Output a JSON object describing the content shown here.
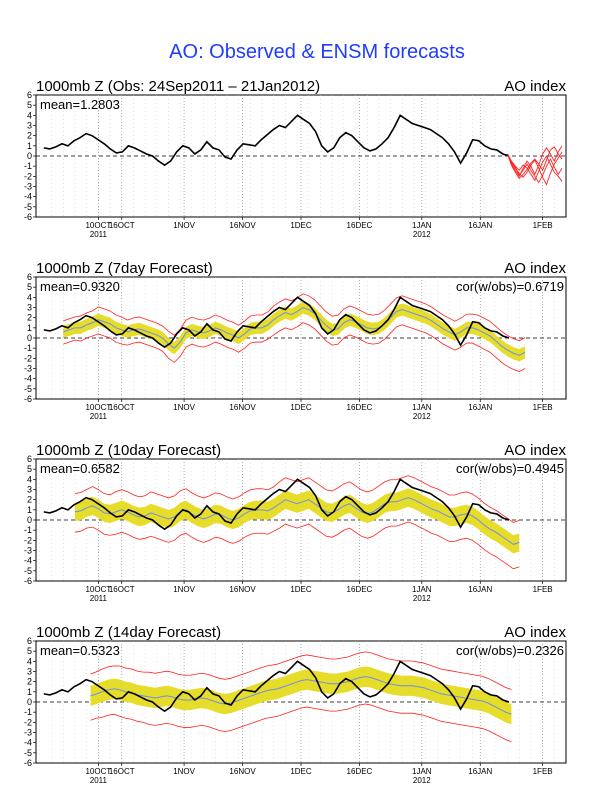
{
  "main_title": "AO: Observed & ENSM forecasts",
  "colors": {
    "title": "#1f3cff",
    "observed": "#000000",
    "member": "#ff2020",
    "band": "#e6dc2a",
    "ens_mean": "#6f8fe8",
    "grid": "#8c8c8c"
  },
  "x_ticks": [
    {
      "label": "10OCT",
      "year": "2011"
    },
    {
      "label": "16OCT",
      "year": ""
    },
    {
      "label": "1NOV",
      "year": ""
    },
    {
      "label": "16NOV",
      "year": ""
    },
    {
      "label": "1DEC",
      "year": ""
    },
    {
      "label": "16DEC",
      "year": ""
    },
    {
      "label": "1JAN",
      "year": "2012"
    },
    {
      "label": "16JAN",
      "year": ""
    },
    {
      "label": "1FEB",
      "year": ""
    }
  ],
  "y_ticks": [
    "6",
    "5",
    "4",
    "3",
    "2",
    "1",
    "0",
    "-1",
    "-2",
    "-3",
    "-4",
    "-5",
    "-6"
  ],
  "chart_data": [
    {
      "type": "line",
      "title": "1000mb Z (Obs: 24Sep2011 – 21Jan2012)",
      "right_title": "AO index",
      "mean_text": "mean=1.2803",
      "cor_text": "",
      "ylim": [
        -6,
        6
      ],
      "xlim_days": [
        0,
        136
      ],
      "observed": [
        0.8,
        0.7,
        0.9,
        1.2,
        1.0,
        1.5,
        1.8,
        2.2,
        2.0,
        1.6,
        1.2,
        0.7,
        0.3,
        0.4,
        1.0,
        0.8,
        0.5,
        0.2,
        0.0,
        -0.5,
        -0.9,
        -0.5,
        0.4,
        1.0,
        0.8,
        0.2,
        0.6,
        1.4,
        0.8,
        0.6,
        -0.1,
        -0.3,
        0.6,
        1.2,
        1.1,
        1.0,
        1.6,
        2.1,
        2.6,
        3.0,
        2.8,
        3.4,
        4.0,
        3.6,
        3.2,
        2.4,
        1.0,
        0.4,
        0.8,
        1.8,
        2.3,
        2.0,
        1.4,
        0.8,
        0.5,
        0.7,
        1.2,
        1.8,
        2.8,
        4.0,
        3.6,
        3.2,
        3.0,
        2.8,
        2.6,
        2.2,
        1.8,
        1.2,
        0.4,
        -0.7,
        0.3,
        1.6,
        1.5,
        1.0,
        0.7,
        0.6,
        0.2,
        0.0
      ],
      "members": [
        [
          0.2,
          -0.8,
          -1.4,
          -2.0,
          -1.2,
          -0.5,
          -1.0,
          -1.8,
          -0.9,
          0.2,
          0.8,
          0.2,
          -0.5,
          0.4,
          1.0
        ],
        [
          0.2,
          -0.5,
          -1.0,
          -1.4,
          -0.9,
          -1.2,
          -1.8,
          -2.4,
          -1.5,
          -0.6,
          0.0,
          -0.8,
          -1.6,
          -2.0,
          -2.5
        ],
        [
          0.2,
          -0.9,
          -1.6,
          -2.2,
          -1.8,
          -1.3,
          -0.7,
          -0.3,
          -0.8,
          -1.4,
          -0.4,
          0.6,
          0.9,
          0.2,
          -0.3
        ],
        [
          0.2,
          -0.6,
          -1.2,
          -1.7,
          -2.1,
          -1.6,
          -0.9,
          -0.4,
          -1.2,
          -2.1,
          -2.8,
          -1.7,
          -0.8,
          -0.2,
          0.4
        ],
        [
          0.2,
          -0.7,
          -1.1,
          -1.9,
          -1.4,
          -0.8,
          -1.4,
          -2.0,
          -2.6,
          -1.9,
          -1.0,
          -0.3,
          -1.1,
          -1.8,
          -1.2
        ]
      ],
      "members_start_day": 121
    },
    {
      "type": "line",
      "title": "1000mb Z (7day Forecast)",
      "right_title": "AO index",
      "mean_text": "mean=0.9320",
      "cor_text": "cor(w/obs)=0.6719",
      "ylim": [
        -6,
        6
      ],
      "xlim_days": [
        0,
        136
      ],
      "observed": [
        0.8,
        0.7,
        0.9,
        1.2,
        1.0,
        1.5,
        1.8,
        2.2,
        2.0,
        1.6,
        1.2,
        0.7,
        0.3,
        0.4,
        1.0,
        0.8,
        0.5,
        0.2,
        0.0,
        -0.5,
        -0.9,
        -0.5,
        0.4,
        1.0,
        0.8,
        0.2,
        0.6,
        1.4,
        0.8,
        0.6,
        -0.1,
        -0.3,
        0.6,
        1.2,
        1.1,
        1.0,
        1.6,
        2.1,
        2.6,
        3.0,
        2.8,
        3.4,
        4.0,
        3.6,
        3.2,
        2.4,
        1.0,
        0.4,
        0.8,
        1.8,
        2.3,
        2.0,
        1.4,
        0.8,
        0.5,
        0.7,
        1.2,
        1.8,
        2.8,
        4.0,
        3.6,
        3.2,
        3.0,
        2.8,
        2.6,
        2.2,
        1.8,
        1.2,
        0.4,
        -0.7,
        0.3,
        1.6,
        1.5,
        1.0,
        0.7,
        0.6,
        0.2,
        0.0
      ],
      "forecast_mean": [
        0.6,
        0.8,
        1.0,
        1.0,
        1.3,
        1.5,
        1.8,
        1.6,
        1.4,
        1.0,
        0.8,
        0.6,
        0.8,
        0.9,
        0.7,
        0.5,
        0.3,
        0.0,
        -0.6,
        -1.0,
        -0.4,
        0.5,
        0.8,
        0.6,
        0.5,
        0.7,
        1.0,
        0.8,
        0.5,
        0.3,
        0.0,
        0.4,
        0.9,
        1.0,
        1.0,
        1.3,
        1.8,
        2.2,
        2.5,
        2.3,
        2.6,
        3.0,
        2.8,
        2.4,
        1.8,
        1.2,
        0.8,
        0.9,
        1.5,
        1.8,
        1.6,
        1.3,
        1.0,
        0.9,
        1.0,
        1.4,
        2.0,
        2.6,
        2.8,
        2.6,
        2.4,
        2.2,
        2.0,
        1.7,
        1.3,
        0.9,
        0.6,
        0.3,
        0.6,
        1.0,
        1.0,
        0.8,
        0.5,
        0.2,
        -0.3,
        -0.8,
        -1.2,
        -1.5,
        -1.7,
        -1.4
      ],
      "spread": [
        1.2,
        1.2,
        1.2,
        1.3,
        1.3,
        1.3,
        1.4,
        1.4,
        1.4,
        1.4,
        1.4,
        1.3,
        1.3,
        1.3,
        1.3,
        1.3,
        1.3,
        1.3,
        1.4,
        1.4,
        1.4,
        1.4,
        1.4,
        1.4,
        1.4,
        1.4,
        1.4,
        1.4,
        1.4,
        1.4,
        1.4,
        1.4,
        1.4,
        1.4,
        1.4,
        1.4,
        1.5,
        1.5,
        1.5,
        1.5,
        1.5,
        1.5,
        1.5,
        1.5,
        1.5,
        1.5,
        1.5,
        1.5,
        1.5,
        1.5,
        1.5,
        1.5,
        1.5,
        1.5,
        1.5,
        1.5,
        1.5,
        1.5,
        1.5,
        1.5,
        1.5,
        1.5,
        1.5,
        1.5,
        1.5,
        1.5,
        1.5,
        1.5,
        1.5,
        1.5,
        1.5,
        1.6,
        1.6,
        1.6,
        1.6,
        1.6,
        1.6,
        1.6,
        1.6,
        1.6
      ],
      "band_half": 0.6,
      "forecast_start_day": 7
    },
    {
      "type": "line",
      "title": "1000mb Z (10day Forecast)",
      "right_title": "AO index",
      "mean_text": "mean=0.6582",
      "cor_text": "cor(w/obs)=0.4945",
      "ylim": [
        -6,
        6
      ],
      "xlim_days": [
        0,
        136
      ],
      "observed": [
        0.8,
        0.7,
        0.9,
        1.2,
        1.0,
        1.5,
        1.8,
        2.2,
        2.0,
        1.6,
        1.2,
        0.7,
        0.3,
        0.4,
        1.0,
        0.8,
        0.5,
        0.2,
        0.0,
        -0.5,
        -0.9,
        -0.5,
        0.4,
        1.0,
        0.8,
        0.2,
        0.6,
        1.4,
        0.8,
        0.6,
        -0.1,
        -0.3,
        0.6,
        1.2,
        1.1,
        1.0,
        1.6,
        2.1,
        2.6,
        3.0,
        2.8,
        3.4,
        4.0,
        3.6,
        3.2,
        2.4,
        1.0,
        0.4,
        0.8,
        1.8,
        2.3,
        2.0,
        1.4,
        0.8,
        0.5,
        0.7,
        1.2,
        1.8,
        2.8,
        4.0,
        3.6,
        3.2,
        3.0,
        2.8,
        2.6,
        2.2,
        1.8,
        1.2,
        0.4,
        -0.7,
        0.3,
        1.6,
        1.5,
        1.0,
        0.7,
        0.6,
        0.2,
        0.0
      ],
      "forecast_mean": [
        0.8,
        0.9,
        1.2,
        1.4,
        1.1,
        0.7,
        0.6,
        0.8,
        1.0,
        0.8,
        0.5,
        0.3,
        0.4,
        0.7,
        0.5,
        0.3,
        0.1,
        0.3,
        0.8,
        1.0,
        0.6,
        0.3,
        0.1,
        0.3,
        0.6,
        0.5,
        0.2,
        0.0,
        0.2,
        0.6,
        0.9,
        1.0,
        1.0,
        0.9,
        1.2,
        1.6,
        2.0,
        1.8,
        1.6,
        1.8,
        2.0,
        1.6,
        1.2,
        0.8,
        0.7,
        1.0,
        1.4,
        1.6,
        1.2,
        0.8,
        0.6,
        0.8,
        1.2,
        1.6,
        1.8,
        1.8,
        2.0,
        2.2,
        2.0,
        1.7,
        1.4,
        1.1,
        0.9,
        0.6,
        0.3,
        0.3,
        0.5,
        0.6,
        0.4,
        0.0,
        -0.5,
        -0.9,
        -1.2,
        -1.6,
        -2.0,
        -2.4,
        -2.2
      ],
      "spread": [
        2.0,
        2.0,
        2.0,
        2.1,
        2.1,
        2.1,
        2.1,
        2.2,
        2.2,
        2.2,
        2.2,
        2.2,
        2.2,
        2.3,
        2.3,
        2.3,
        2.3,
        2.3,
        2.3,
        2.3,
        2.3,
        2.3,
        2.3,
        2.3,
        2.3,
        2.3,
        2.3,
        2.3,
        2.3,
        2.3,
        2.3,
        2.3,
        2.3,
        2.3,
        2.3,
        2.4,
        2.4,
        2.4,
        2.4,
        2.4,
        2.4,
        2.4,
        2.4,
        2.4,
        2.4,
        2.4,
        2.4,
        2.4,
        2.4,
        2.4,
        2.4,
        2.4,
        2.4,
        2.4,
        2.4,
        2.4,
        2.4,
        2.4,
        2.4,
        2.4,
        2.4,
        2.4,
        2.4,
        2.4,
        2.4,
        2.4,
        2.4,
        2.4,
        2.4,
        2.4,
        2.4,
        2.4,
        2.4,
        2.4,
        2.4,
        2.4,
        2.4,
        2.4
      ],
      "band_half": 0.9,
      "forecast_start_day": 10
    },
    {
      "type": "line",
      "title": "1000mb Z (14day Forecast)",
      "right_title": "AO index",
      "mean_text": "mean=0.5323",
      "cor_text": "cor(w/obs)=0.2326",
      "ylim": [
        -6,
        6
      ],
      "xlim_days": [
        0,
        136
      ],
      "observed": [
        0.8,
        0.7,
        0.9,
        1.2,
        1.0,
        1.5,
        1.8,
        2.2,
        2.0,
        1.6,
        1.2,
        0.7,
        0.3,
        0.4,
        1.0,
        0.8,
        0.5,
        0.2,
        0.0,
        -0.5,
        -0.9,
        -0.5,
        0.4,
        1.0,
        0.8,
        0.2,
        0.6,
        1.4,
        0.8,
        0.6,
        -0.1,
        -0.3,
        0.6,
        1.2,
        1.1,
        1.0,
        1.6,
        2.1,
        2.6,
        3.0,
        2.8,
        3.4,
        4.0,
        3.6,
        3.2,
        2.4,
        1.0,
        0.4,
        0.8,
        1.8,
        2.3,
        2.0,
        1.4,
        0.8,
        0.5,
        0.7,
        1.2,
        1.8,
        2.8,
        4.0,
        3.6,
        3.2,
        3.0,
        2.8,
        2.6,
        2.2,
        1.8,
        1.2,
        0.4,
        -0.7,
        0.3,
        1.6,
        1.5,
        1.0,
        0.7,
        0.6,
        0.2,
        0.0
      ],
      "forecast_mean": [
        0.6,
        0.8,
        1.0,
        1.2,
        1.3,
        1.2,
        1.0,
        0.9,
        0.7,
        0.6,
        0.5,
        0.4,
        0.5,
        0.6,
        0.5,
        0.3,
        0.2,
        0.2,
        0.3,
        0.4,
        0.3,
        0.1,
        -0.1,
        -0.2,
        -0.1,
        0.1,
        0.3,
        0.5,
        0.7,
        0.9,
        1.1,
        1.2,
        1.3,
        1.5,
        1.7,
        1.9,
        2.1,
        2.2,
        2.1,
        2.0,
        1.9,
        1.8,
        1.8,
        1.9,
        2.0,
        2.2,
        2.4,
        2.5,
        2.4,
        2.2,
        2.0,
        1.8,
        1.7,
        1.6,
        1.6,
        1.6,
        1.5,
        1.4,
        1.2,
        1.0,
        0.8,
        0.7,
        0.6,
        0.5,
        0.4,
        0.3,
        0.2,
        0.1,
        -0.1,
        -0.4,
        -0.7,
        -1.0,
        -1.2
      ],
      "spread": [
        2.4,
        2.4,
        2.5,
        2.5,
        2.5,
        2.6,
        2.6,
        2.6,
        2.6,
        2.6,
        2.7,
        2.7,
        2.7,
        2.7,
        2.7,
        2.7,
        2.7,
        2.7,
        2.7,
        2.7,
        2.7,
        2.7,
        2.7,
        2.7,
        2.7,
        2.7,
        2.7,
        2.7,
        2.7,
        2.7,
        2.7,
        2.7,
        2.7,
        2.7,
        2.7,
        2.7,
        2.7,
        2.7,
        2.7,
        2.7,
        2.7,
        2.7,
        2.7,
        2.7,
        2.7,
        2.7,
        2.7,
        2.7,
        2.7,
        2.7,
        2.7,
        2.7,
        2.7,
        2.7,
        2.7,
        2.7,
        2.7,
        2.7,
        2.7,
        2.7,
        2.7,
        2.7,
        2.7,
        2.7,
        2.7,
        2.7,
        2.7,
        2.7,
        2.7,
        2.7,
        2.7,
        2.7,
        2.7
      ],
      "band_half": 1.0,
      "forecast_start_day": 14
    }
  ]
}
